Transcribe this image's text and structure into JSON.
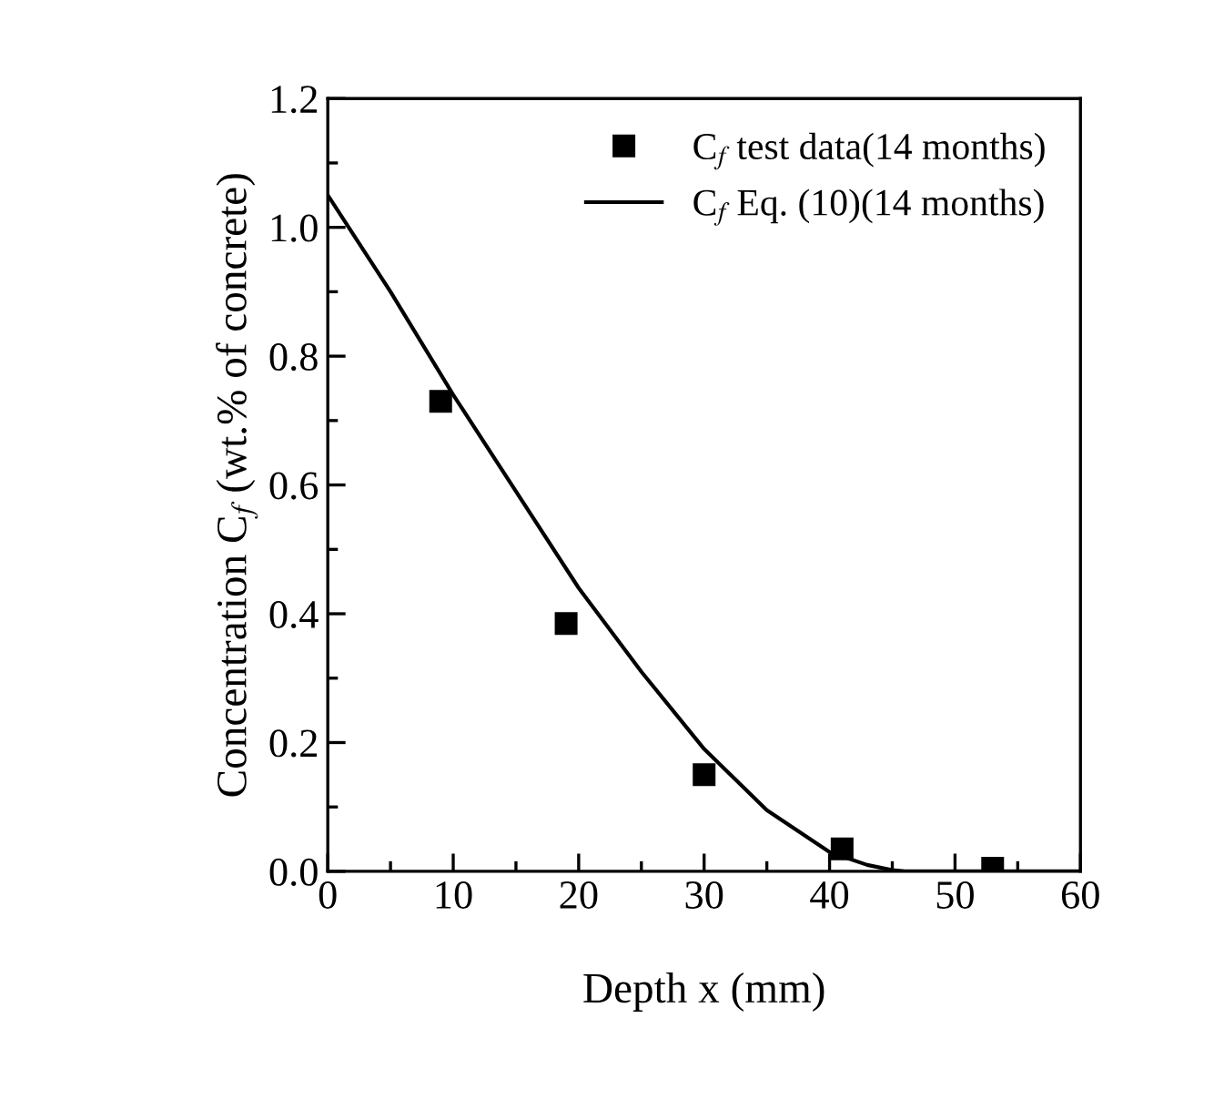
{
  "chart_data": {
    "type": "scatter",
    "xlabel": "Depth x (mm)",
    "ylabel": "Concentration C$_{f}$ (wt.% of concrete)",
    "xlim": [
      0,
      60
    ],
    "xticks": [
      0,
      10,
      20,
      30,
      40,
      50,
      60
    ],
    "ylim": [
      0,
      1.2
    ],
    "yticks": [
      {
        "value": 0,
        "label": "0.0"
      },
      0.2,
      0.4,
      0.6,
      0.8,
      {
        "value": 1,
        "label": "1.0"
      },
      1.2
    ],
    "grid": false,
    "legend": "top right",
    "series": [
      {
        "name": "C$_{f}$ test data(14 months)",
        "type": "scatter",
        "marker": "square",
        "color": "#000000",
        "x": [
          9,
          19,
          30,
          41,
          53
        ],
        "values": [
          0.73,
          0.385,
          0.15,
          0.035,
          0.005
        ]
      },
      {
        "name": "C$_{f}$ Eq. (10)(14 months)",
        "type": "line",
        "marker": "none",
        "line_style": "solid",
        "color": "#000000",
        "x": [
          0,
          5,
          10,
          15,
          20,
          25,
          30,
          35,
          40,
          43,
          45,
          46,
          50,
          55,
          60
        ],
        "values": [
          1.05,
          0.9,
          0.74,
          0.59,
          0.44,
          0.31,
          0.19,
          0.095,
          0.03,
          0.01,
          0.002,
          0,
          0,
          0,
          0
        ]
      }
    ]
  }
}
